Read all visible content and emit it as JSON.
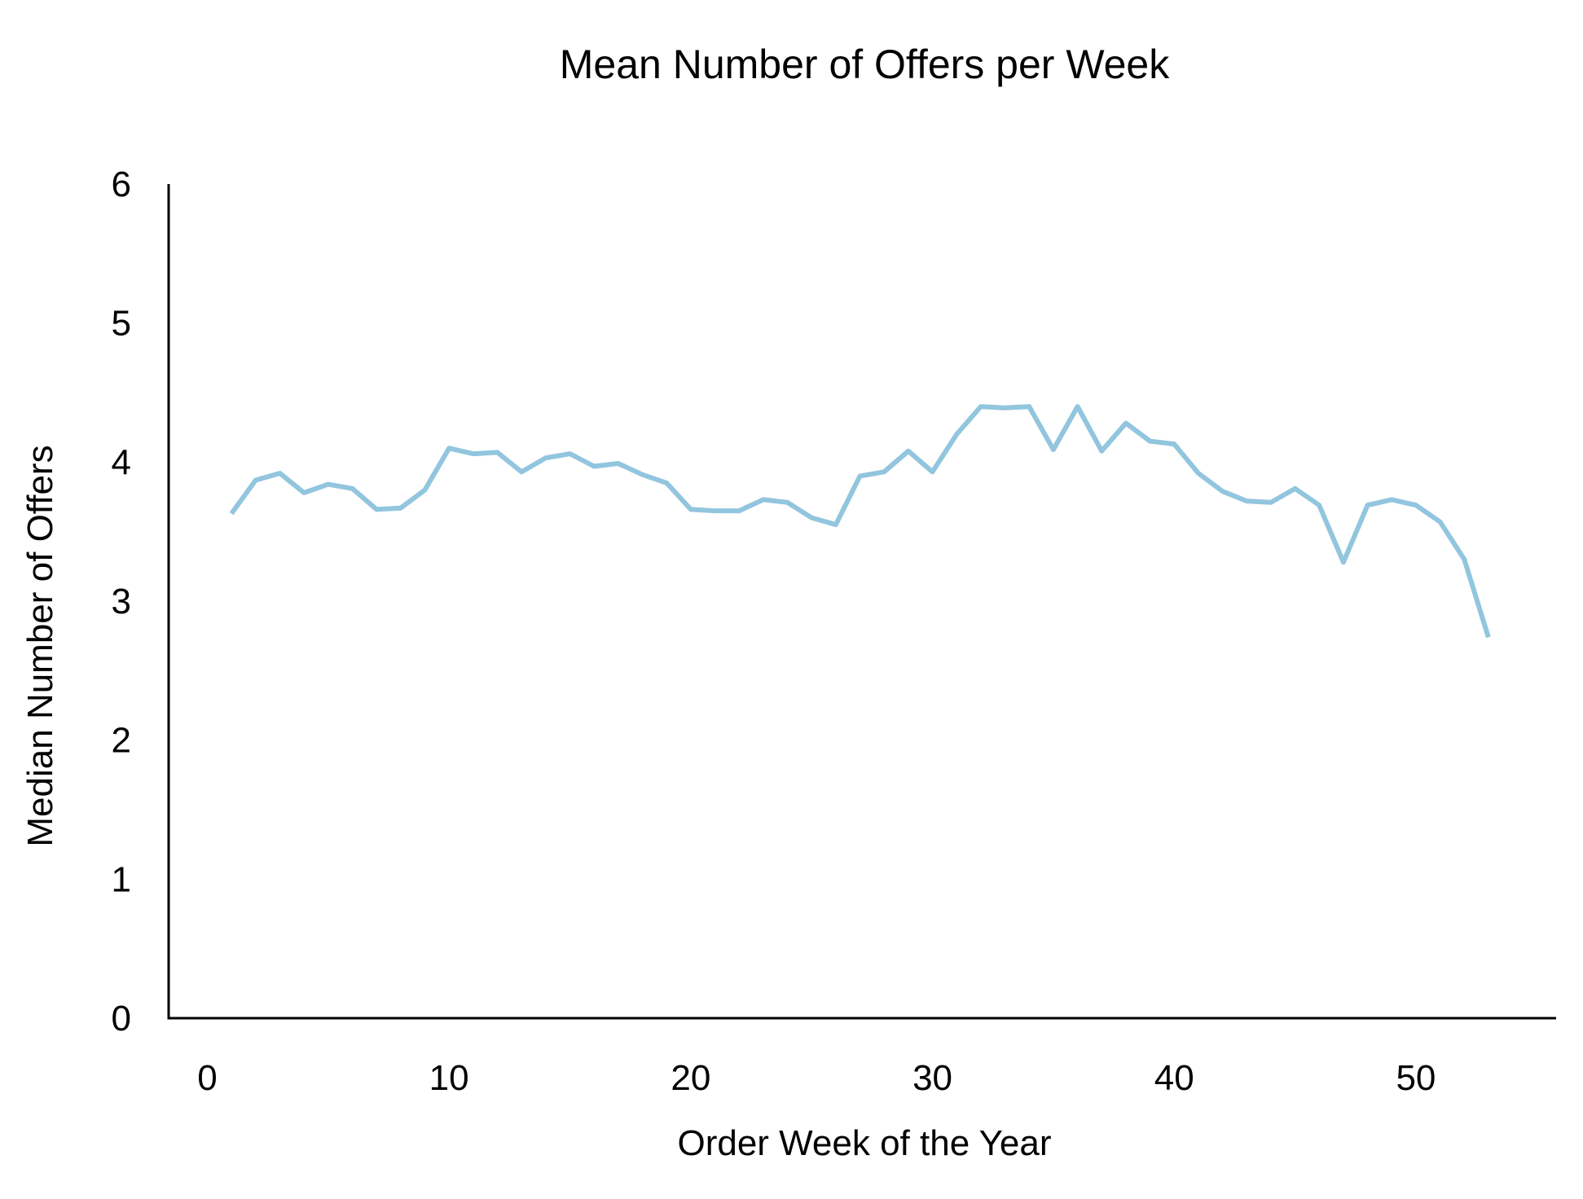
{
  "chart_data": {
    "type": "line",
    "title": "Mean Number of Offers per Week",
    "xlabel": "Order Week of the Year",
    "ylabel": "Median Number of Offers",
    "xlim": [
      -1.6,
      55.8
    ],
    "ylim": [
      0,
      6
    ],
    "xticks": [
      0,
      10,
      20,
      30,
      40,
      50
    ],
    "yticks": [
      0,
      1,
      2,
      3,
      4,
      5,
      6
    ],
    "grid": false,
    "legend": "none",
    "line_color": "#92c5de",
    "x": [
      1,
      2,
      3,
      4,
      5,
      6,
      7,
      8,
      9,
      10,
      11,
      12,
      13,
      14,
      15,
      16,
      17,
      18,
      19,
      20,
      21,
      22,
      23,
      24,
      25,
      26,
      27,
      28,
      29,
      30,
      31,
      32,
      33,
      34,
      35,
      36,
      37,
      38,
      39,
      40,
      41,
      42,
      43,
      44,
      45,
      46,
      47,
      48,
      49,
      50,
      51,
      52,
      53
    ],
    "y": [
      3.63,
      3.87,
      3.92,
      3.78,
      3.84,
      3.81,
      3.66,
      3.67,
      3.8,
      4.1,
      4.06,
      4.07,
      3.93,
      4.03,
      4.06,
      3.97,
      3.99,
      3.91,
      3.85,
      3.66,
      3.65,
      3.65,
      3.73,
      3.71,
      3.6,
      3.55,
      3.9,
      3.93,
      4.08,
      3.93,
      4.2,
      4.4,
      4.39,
      4.4,
      4.09,
      4.4,
      4.08,
      4.28,
      4.15,
      4.13,
      3.92,
      3.79,
      3.72,
      3.71,
      3.81,
      3.69,
      3.28,
      3.69,
      3.73,
      3.69,
      3.57,
      3.3,
      2.74
    ]
  }
}
